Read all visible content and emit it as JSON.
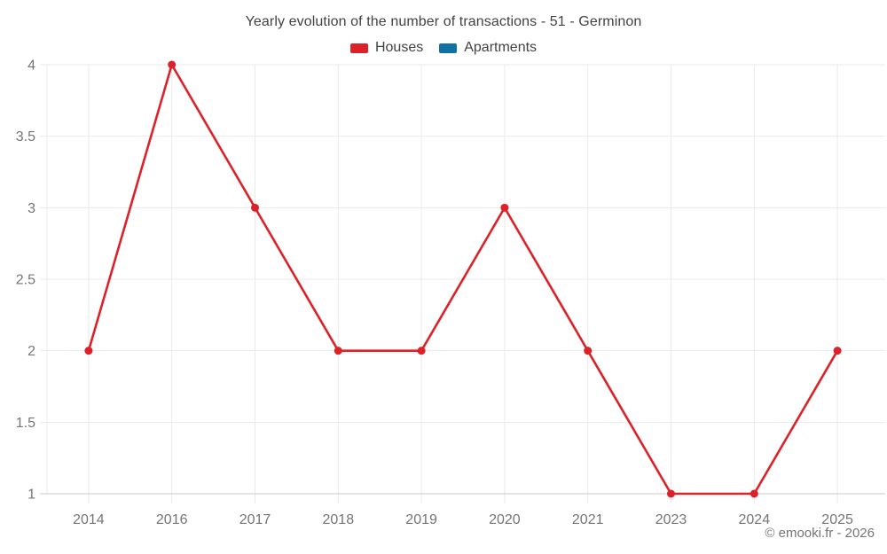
{
  "header": {
    "title": "Yearly evolution of the number of transactions - 51 - Germinon"
  },
  "chart_data": {
    "type": "line",
    "title": "Yearly evolution of the number of transactions - 51 - Germinon",
    "categories": [
      "2014",
      "2016",
      "2017",
      "2018",
      "2019",
      "2020",
      "2021",
      "2023",
      "2024",
      "2025"
    ],
    "series": [
      {
        "name": "Houses",
        "color": "#dc2228",
        "values": [
          2,
          4,
          3,
          2,
          2,
          3,
          2,
          1,
          1,
          2
        ]
      },
      {
        "name": "Apartments",
        "color": "#0f72a5",
        "values": []
      }
    ],
    "xlabel": "",
    "ylabel": "",
    "ylim": [
      1,
      4
    ],
    "yticks": [
      "4",
      "3.5",
      "3",
      "2.5",
      "2",
      "1.5",
      "1"
    ],
    "grid": true,
    "legend_position": "top"
  },
  "footer": {
    "copyright": "© emooki.fr - 2026"
  },
  "colors": {
    "grid": "#eaeaea",
    "axis": "#c9c9c9",
    "tick_label": "#757575",
    "title_text": "#424242"
  }
}
